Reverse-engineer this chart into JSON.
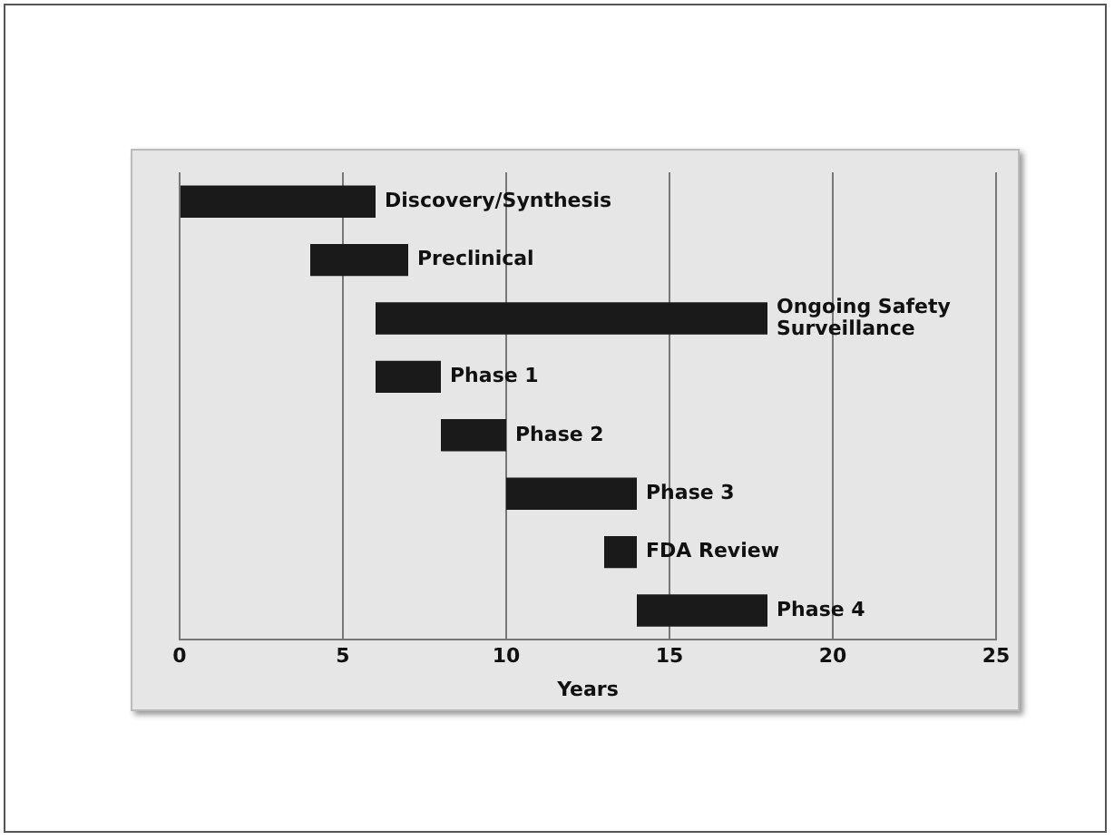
{
  "chart_data": {
    "type": "bar",
    "orientation": "horizontal",
    "xlabel": "Years",
    "categories": [
      "Discovery/Synthesis",
      "Preclinical",
      "Ongoing Safety Surveillance",
      "Phase 1",
      "Phase 2",
      "Phase 3",
      "FDA Review",
      "Phase 4"
    ],
    "base": [
      0,
      4,
      6,
      6,
      8,
      10,
      13,
      14
    ],
    "values": [
      6,
      3,
      12,
      2,
      2,
      4,
      1,
      4
    ],
    "color": "#1a1a1a",
    "xlim": [
      0,
      25
    ],
    "xticks": [
      0,
      5,
      10,
      15,
      20,
      25
    ],
    "grid": "x",
    "tick_labels": "x"
  }
}
